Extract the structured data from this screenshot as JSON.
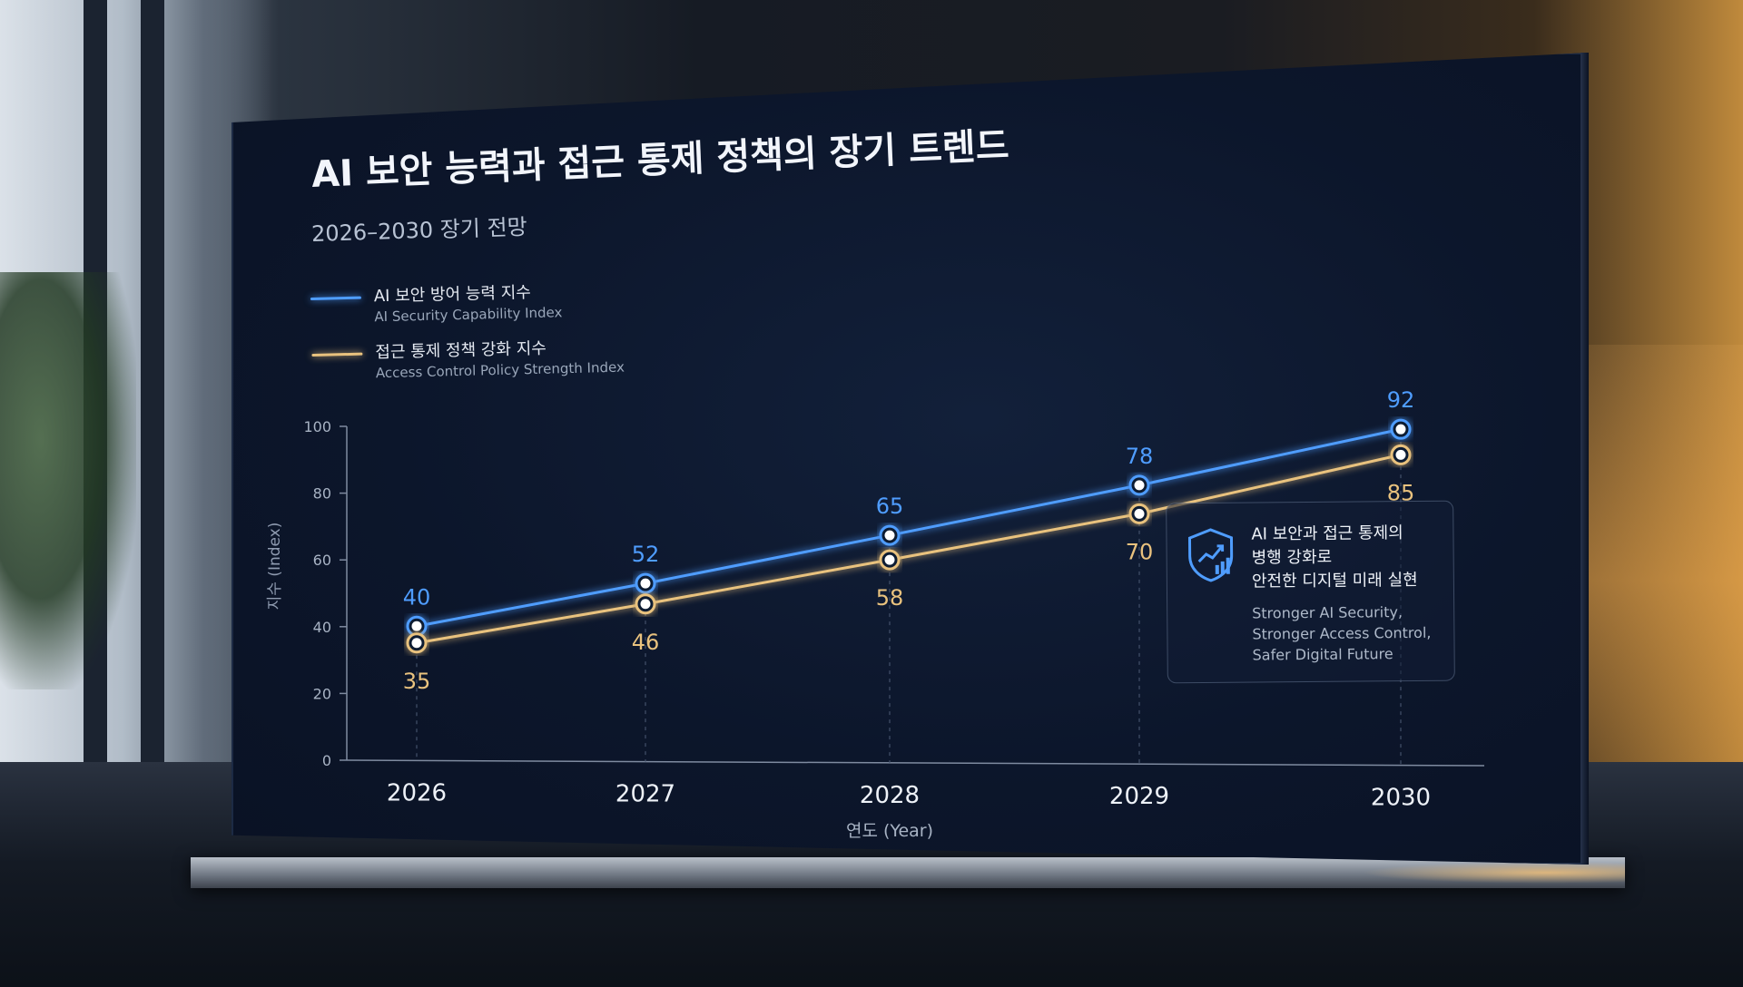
{
  "panel": {
    "title": "AI 보안 능력과 접근 통제 정책의 장기 트렌드",
    "subtitle": "2026–2030 장기 전망"
  },
  "legend": [
    {
      "label_kr": "AI 보안 방어 능력 지수",
      "label_en": "AI Security Capability Index",
      "color": "#4f9dff"
    },
    {
      "label_kr": "접근 통제 정책 강화 지수",
      "label_en": "Access Control Policy Strength Index",
      "color": "#e9c27e"
    }
  ],
  "callout": {
    "icon": "shield-chart-icon",
    "text_kr": [
      "AI 보안과 접근 통제의",
      "병행 강화로",
      "안전한 디지털 미래 실현"
    ],
    "text_en": [
      "Stronger AI Security,",
      "Stronger Access Control,",
      "Safer Digital Future"
    ]
  },
  "chart_data": {
    "type": "line",
    "title": "AI 보안 능력과 접근 통제 정책의 장기 트렌드",
    "subtitle": "2026–2030 장기 전망",
    "xlabel": "연도 (Year)",
    "ylabel": "지수 (Index)",
    "categories": [
      "2026",
      "2027",
      "2028",
      "2029",
      "2030"
    ],
    "yticks": [
      "0",
      "20",
      "40",
      "60",
      "80",
      "100"
    ],
    "ylim": [
      0,
      100
    ],
    "grid": false,
    "legend_position": "top-left",
    "series": [
      {
        "name": "AI 보안 방어 능력 지수",
        "name_en": "AI Security Capability Index",
        "values": [
          40,
          52,
          65,
          78,
          92
        ],
        "color": "#4f9dff",
        "label_side": "above"
      },
      {
        "name": "접근 통제 정책 강화 지수",
        "name_en": "Access Control Policy Strength Index",
        "values": [
          35,
          46,
          58,
          70,
          85
        ],
        "color": "#e9c27e",
        "label_side": "below"
      }
    ]
  }
}
